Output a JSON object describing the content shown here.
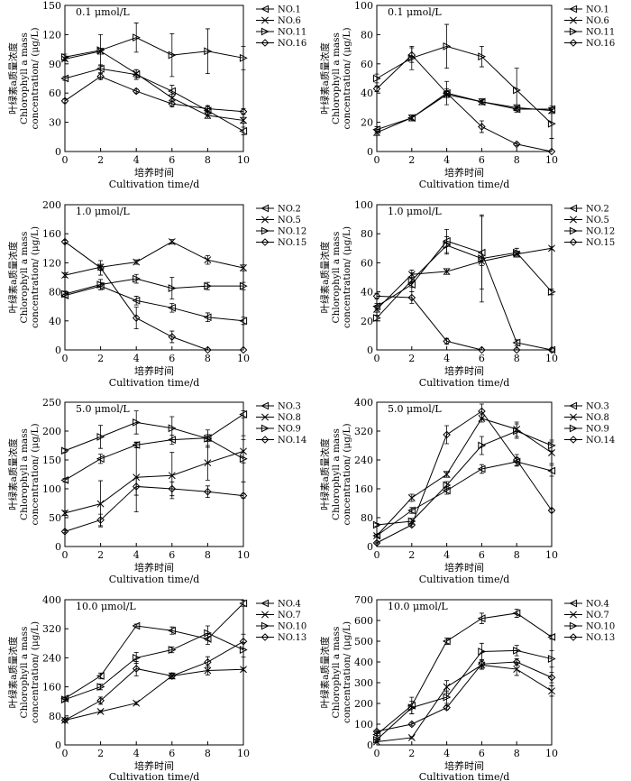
{
  "figure": {
    "xlabel_cn": "培养时间",
    "xlabel_en_short": "Cultivation time/d",
    "ylabel_cn": "叶绿素a质量浓度",
    "ylabel_en_1": "Chlorophyll a mass",
    "ylabel_en_2": "concentration/ (μg/L)"
  },
  "chart_data": [
    {
      "type": "line",
      "title": "0.1 μmol/L",
      "ylim": [
        0,
        150
      ],
      "yticks": [
        0,
        30,
        60,
        90,
        120,
        150
      ],
      "x": [
        0,
        2,
        4,
        6,
        8,
        10
      ],
      "xticks": [
        0,
        2,
        4,
        6,
        8,
        10
      ],
      "xlabel": "培养时间 Cultivation time/d",
      "xlabel_variant": "short",
      "series": [
        {
          "name": "NO.1",
          "marker": "tri-left",
          "values": [
            75,
            85,
            79,
            62,
            42,
            21
          ],
          "errors": [
            2,
            4,
            5,
            6,
            5,
            4
          ]
        },
        {
          "name": "NO.6",
          "marker": "cross",
          "values": [
            95,
            103,
            80,
            55,
            37,
            32
          ],
          "errors": [
            2,
            3,
            4,
            4,
            3,
            3
          ]
        },
        {
          "name": "NO.11",
          "marker": "tri-right",
          "values": [
            97,
            104,
            117,
            99,
            103,
            96
          ],
          "errors": [
            3,
            16,
            15,
            22,
            23,
            12
          ]
        },
        {
          "name": "NO.16",
          "marker": "diamond",
          "values": [
            52,
            77,
            62,
            49,
            44,
            41
          ],
          "errors": [
            2,
            3,
            2,
            3,
            3,
            3
          ]
        }
      ]
    },
    {
      "type": "line",
      "title": "0.1 μmol/L",
      "ylim": [
        0,
        100
      ],
      "yticks": [
        0,
        20,
        40,
        60,
        80,
        100
      ],
      "x": [
        0,
        2,
        4,
        6,
        8,
        10
      ],
      "xticks": [
        0,
        2,
        4,
        6,
        8,
        10
      ],
      "xlabel": "培养时间 Cultivation time/d",
      "xlabel_variant": "short",
      "series": [
        {
          "name": "NO.1",
          "marker": "tri-left",
          "values": [
            15,
            23,
            40,
            34,
            29,
            29
          ],
          "errors": [
            2,
            2,
            3,
            2,
            2,
            2
          ]
        },
        {
          "name": "NO.6",
          "marker": "cross",
          "values": [
            13,
            23,
            39,
            34,
            30,
            28
          ],
          "errors": [
            2,
            2,
            2,
            2,
            2,
            2
          ]
        },
        {
          "name": "NO.11",
          "marker": "tri-right",
          "values": [
            50,
            64,
            72,
            65,
            42,
            19
          ],
          "errors": [
            3,
            8,
            15,
            7,
            15,
            10
          ]
        },
        {
          "name": "NO.16",
          "marker": "diamond",
          "values": [
            43,
            66,
            40,
            17,
            5,
            0
          ],
          "errors": [
            2,
            5,
            8,
            4,
            1,
            0
          ]
        }
      ]
    },
    {
      "type": "line",
      "title": "1.0 μmol/L",
      "ylim": [
        0,
        200
      ],
      "yticks": [
        0,
        40,
        80,
        120,
        160,
        200
      ],
      "x": [
        0,
        2,
        4,
        6,
        8,
        10
      ],
      "xticks": [
        0,
        2,
        4,
        6,
        8,
        10
      ],
      "xlabel": "培养时间 Cultivation time/d",
      "xlabel_variant": "short",
      "series": [
        {
          "name": "NO.2",
          "marker": "tri-left",
          "values": [
            75,
            88,
            68,
            58,
            45,
            40
          ],
          "errors": [
            2,
            5,
            6,
            6,
            6,
            5
          ]
        },
        {
          "name": "NO.5",
          "marker": "cross",
          "values": [
            103,
            114,
            121,
            149,
            124,
            113
          ],
          "errors": [
            3,
            4,
            3,
            3,
            6,
            4
          ]
        },
        {
          "name": "NO.12",
          "marker": "tri-right",
          "values": [
            77,
            90,
            98,
            85,
            88,
            88
          ],
          "errors": [
            4,
            7,
            6,
            15,
            5,
            5
          ]
        },
        {
          "name": "NO.15",
          "marker": "diamond",
          "values": [
            149,
            113,
            44,
            18,
            0,
            0
          ],
          "errors": [
            2,
            10,
            15,
            8,
            0,
            0
          ]
        }
      ]
    },
    {
      "type": "line",
      "title": "1.0 μmol/L",
      "ylim": [
        0,
        100
      ],
      "yticks": [
        0,
        20,
        40,
        60,
        80,
        100
      ],
      "x": [
        0,
        2,
        4,
        6,
        8,
        10
      ],
      "xticks": [
        0,
        2,
        4,
        6,
        8,
        10
      ],
      "xlabel": "培养时间 Cultivation time/d",
      "xlabel_variant": "short",
      "series": [
        {
          "name": "NO.2",
          "marker": "tri-left",
          "values": [
            30,
            45,
            75,
            67,
            5,
            0
          ],
          "errors": [
            2,
            5,
            8,
            25,
            2,
            0
          ]
        },
        {
          "name": "NO.5",
          "marker": "cross",
          "values": [
            28,
            52,
            54,
            61,
            66,
            70
          ],
          "errors": [
            2,
            3,
            2,
            3,
            2,
            1
          ]
        },
        {
          "name": "NO.12",
          "marker": "tri-right",
          "values": [
            22,
            48,
            72,
            63,
            67,
            40
          ],
          "errors": [
            2,
            5,
            6,
            30,
            3,
            2
          ]
        },
        {
          "name": "NO.15",
          "marker": "diamond",
          "values": [
            37,
            36,
            6,
            0,
            0,
            0
          ],
          "errors": [
            2,
            4,
            2,
            0,
            0,
            0
          ]
        }
      ]
    },
    {
      "type": "line",
      "title": "5.0 μmol/L",
      "ylim": [
        0,
        250
      ],
      "yticks": [
        0,
        50,
        100,
        150,
        200,
        250
      ],
      "x": [
        0,
        2,
        4,
        6,
        8,
        10
      ],
      "xticks": [
        0,
        2,
        4,
        6,
        8,
        10
      ],
      "xlabel": "培养时间 Cultivation time/d",
      "xlabel_variant": "short",
      "series": [
        {
          "name": "NO.3",
          "marker": "tri-left",
          "values": [
            115,
            152,
            176,
            185,
            188,
            229
          ],
          "errors": [
            3,
            8,
            5,
            8,
            6,
            6
          ]
        },
        {
          "name": "NO.8",
          "marker": "cross",
          "values": [
            58,
            74,
            120,
            123,
            145,
            165
          ],
          "errors": [
            4,
            40,
            60,
            40,
            30,
            20
          ]
        },
        {
          "name": "NO.9",
          "marker": "tri-right",
          "values": [
            166,
            190,
            215,
            205,
            187,
            152
          ],
          "errors": [
            3,
            20,
            20,
            20,
            15,
            40
          ]
        },
        {
          "name": "NO.14",
          "marker": "diamond",
          "values": [
            26,
            46,
            104,
            100,
            95,
            88
          ],
          "errors": [
            2,
            10,
            15,
            12,
            10,
            4
          ]
        }
      ]
    },
    {
      "type": "line",
      "title": "5.0 μmol/L",
      "ylim": [
        0,
        400
      ],
      "yticks": [
        0,
        80,
        160,
        240,
        320,
        400
      ],
      "x": [
        0,
        2,
        4,
        6,
        8,
        10
      ],
      "xticks": [
        0,
        2,
        4,
        6,
        8,
        10
      ],
      "xlabel": "培养时间 Cultivation time/d",
      "xlabel_variant": "short",
      "series": [
        {
          "name": "NO.3",
          "marker": "tri-left",
          "values": [
            30,
            100,
            155,
            215,
            235,
            210
          ],
          "errors": [
            3,
            8,
            10,
            12,
            12,
            15
          ]
        },
        {
          "name": "NO.8",
          "marker": "cross",
          "values": [
            30,
            135,
            200,
            355,
            325,
            260
          ],
          "errors": [
            3,
            10,
            8,
            10,
            20,
            30
          ]
        },
        {
          "name": "NO.9",
          "marker": "tri-right",
          "values": [
            60,
            70,
            170,
            280,
            320,
            280
          ],
          "errors": [
            4,
            8,
            10,
            25,
            20,
            15
          ]
        },
        {
          "name": "NO.14",
          "marker": "diamond",
          "values": [
            10,
            60,
            310,
            375,
            240,
            100
          ],
          "errors": [
            2,
            5,
            25,
            20,
            15,
            5
          ]
        }
      ]
    },
    {
      "type": "line",
      "title": "10.0 μmol/L",
      "ylim": [
        0,
        400
      ],
      "yticks": [
        0,
        80,
        160,
        240,
        320,
        400
      ],
      "x": [
        0,
        2,
        4,
        6,
        8,
        10
      ],
      "xticks": [
        0,
        2,
        4,
        6,
        8,
        10
      ],
      "xlabel": "Cultivation time/d",
      "xlabel_variant": "en",
      "series": [
        {
          "name": "NO.4",
          "marker": "tri-left",
          "values": [
            128,
            190,
            328,
            315,
            292,
            390
          ],
          "errors": [
            3,
            8,
            5,
            10,
            15,
            8
          ]
        },
        {
          "name": "NO.7",
          "marker": "cross",
          "values": [
            68,
            92,
            115,
            190,
            205,
            208
          ],
          "errors": [
            2,
            3,
            4,
            8,
            12,
            4
          ]
        },
        {
          "name": "NO.10",
          "marker": "tri-right",
          "values": [
            125,
            160,
            240,
            262,
            308,
            262
          ],
          "errors": [
            4,
            8,
            15,
            8,
            20,
            20
          ]
        },
        {
          "name": "NO.13",
          "marker": "diamond",
          "values": [
            68,
            122,
            210,
            190,
            228,
            285
          ],
          "errors": [
            3,
            10,
            20,
            8,
            15,
            20
          ]
        }
      ]
    },
    {
      "type": "line",
      "title": "10.0 μmol/L",
      "ylim": [
        0,
        700
      ],
      "yticks": [
        0,
        100,
        200,
        300,
        400,
        500,
        600,
        700
      ],
      "x": [
        0,
        2,
        4,
        6,
        8,
        10
      ],
      "xticks": [
        0,
        2,
        4,
        6,
        8,
        10
      ],
      "xlabel": "Cultivation time/d",
      "xlabel_variant": "en",
      "series": [
        {
          "name": "NO.4",
          "marker": "tri-left",
          "values": [
            50,
            190,
            500,
            610,
            635,
            520
          ],
          "errors": [
            4,
            40,
            15,
            25,
            20,
            10
          ]
        },
        {
          "name": "NO.7",
          "marker": "cross",
          "values": [
            15,
            35,
            280,
            385,
            365,
            260
          ],
          "errors": [
            2,
            5,
            30,
            20,
            30,
            25
          ]
        },
        {
          "name": "NO.10",
          "marker": "tri-right",
          "values": [
            25,
            180,
            230,
            450,
            455,
            415
          ],
          "errors": [
            3,
            30,
            30,
            40,
            25,
            40
          ]
        },
        {
          "name": "NO.13",
          "marker": "diamond",
          "values": [
            65,
            100,
            180,
            390,
            400,
            325
          ],
          "errors": [
            3,
            8,
            10,
            20,
            15,
            25
          ]
        }
      ]
    }
  ]
}
